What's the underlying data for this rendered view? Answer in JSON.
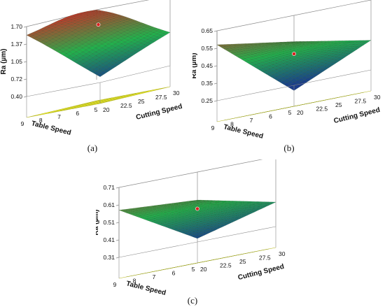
{
  "chart_data": [
    {
      "type": "surface3d",
      "panel_label": "(a)",
      "zlabel": "Ra (µm)",
      "xlabel": "Table Speed",
      "ylabel": "Cutting Speed",
      "zticks": [
        "0.40",
        "0.72",
        "1.05",
        "1.37",
        "1.70"
      ],
      "xticks": [
        "5",
        "6",
        "7",
        "8",
        "9"
      ],
      "yticks": [
        "20",
        "22.5",
        "25",
        "27.5",
        "30"
      ],
      "xlim": [
        5,
        9
      ],
      "ylim": [
        20,
        30
      ],
      "zlim": [
        0.4,
        1.7
      ],
      "corners": {
        "ts5_cs20": 0.55,
        "ts5_cs30": 1.05,
        "ts9_cs20": 1.55,
        "ts9_cs30": 1.62
      },
      "peak": {
        "ts": 8.3,
        "cs": 27,
        "ra": 1.72
      },
      "design_point": {
        "ts": 7,
        "cs": 25,
        "ra": 1.45
      }
    },
    {
      "type": "surface3d",
      "panel_label": "(b)",
      "zlabel": "Ra (µm)",
      "xlabel": "Table Speed",
      "ylabel": "Cutting Speed",
      "zticks": [
        "0.25",
        "0.35",
        "0.45",
        "0.55",
        "0.65"
      ],
      "xticks": [
        "5",
        "6",
        "7",
        "8",
        "9"
      ],
      "yticks": [
        "20",
        "22.5",
        "25",
        "27.5",
        "30"
      ],
      "xlim": [
        5,
        9
      ],
      "ylim": [
        20,
        30
      ],
      "zlim": [
        0.25,
        0.65
      ],
      "corners": {
        "ts5_cs20": 0.22,
        "ts5_cs30": 0.42,
        "ts9_cs20": 0.57,
        "ts9_cs30": 0.5
      },
      "design_point": {
        "ts": 7,
        "cs": 25,
        "ra": 0.43
      }
    },
    {
      "type": "surface3d",
      "panel_label": "(c)",
      "zlabel": "Ra (µm)",
      "xlabel": "Table Speed",
      "ylabel": "Cutting Speed",
      "zticks": [
        "0.31",
        "0.41",
        "0.51",
        "0.61",
        "0.71"
      ],
      "xticks": [
        "5",
        "6",
        "7",
        "8",
        "9"
      ],
      "yticks": [
        "20",
        "22.5",
        "25",
        "27.5",
        "30"
      ],
      "xlim": [
        5,
        9
      ],
      "ylim": [
        20,
        30
      ],
      "zlim": [
        0.31,
        0.71
      ],
      "corners": {
        "ts5_cs20": 0.33,
        "ts5_cs30": 0.45,
        "ts9_cs20": 0.58,
        "ts9_cs30": 0.55
      },
      "design_point": {
        "ts": 7,
        "cs": 25,
        "ra": 0.5
      }
    }
  ],
  "colors": {
    "surface_low": "#1a3a8c",
    "surface_mid": "#22b14c",
    "surface_high": "#c0392b",
    "contour_plane": "#f3f22b",
    "design_point": "#d92020",
    "frame": "#8a8a8a"
  }
}
